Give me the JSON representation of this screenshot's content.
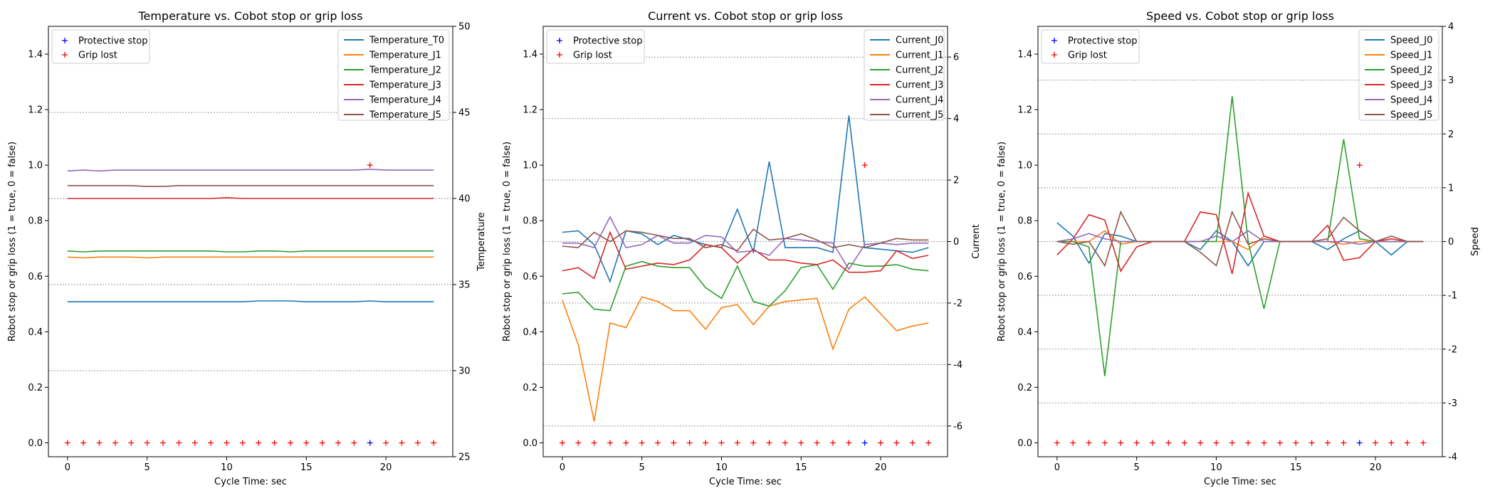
{
  "figure": {
    "accent_colors": {
      "J0": "#1f77b4",
      "J1": "#ff7f0e",
      "J2": "#2ca02c",
      "J3": "#d62728",
      "J4": "#9467bd",
      "J5": "#8c564b",
      "protective_stop": "#0000ff",
      "grip_lost": "#ff0000"
    }
  },
  "chart_data": [
    {
      "type": "line",
      "title": "Temperature vs. Cobot stop or grip loss",
      "xlabel": "Cycle Time: sec",
      "ylabel_left": "Robot stop or grip loss (1 = true, 0 = false)",
      "ylabel_right": "Temperature",
      "xlim": [
        -1.2,
        24.2
      ],
      "ylim_left": [
        -0.05,
        1.5
      ],
      "ylim_right": [
        25,
        50
      ],
      "x_ticks": [
        0,
        5,
        10,
        15,
        20
      ],
      "left_ticks": [
        0.0,
        0.2,
        0.4,
        0.6,
        0.8,
        1.0,
        1.2,
        1.4
      ],
      "right_ticks": [
        25,
        30,
        35,
        40,
        45,
        50
      ],
      "grid": "right-axis horizontal dotted",
      "legend_left": {
        "placement": "top-left",
        "entries": [
          "Protective stop",
          "Grip lost"
        ]
      },
      "legend_right": {
        "placement": "top-right"
      },
      "x": [
        0,
        1,
        2,
        3,
        4,
        5,
        6,
        7,
        8,
        9,
        10,
        11,
        12,
        13,
        14,
        15,
        16,
        17,
        18,
        19,
        20,
        21,
        22,
        23
      ],
      "markers": {
        "protective_stop": [
          0,
          0,
          0,
          0,
          0,
          0,
          0,
          0,
          0,
          0,
          0,
          0,
          0,
          0,
          0,
          0,
          0,
          0,
          0,
          0,
          0,
          0,
          0,
          0
        ],
        "grip_lost": [
          0,
          0,
          0,
          0,
          0,
          0,
          0,
          0,
          0,
          0,
          0,
          0,
          0,
          0,
          0,
          0,
          0,
          0,
          0,
          1,
          0,
          0,
          0,
          0
        ],
        "protective_stop_visible_at": [
          19
        ]
      },
      "series": [
        {
          "name": "Temperature_T0",
          "color": "#1f77b4",
          "values": [
            34.0,
            34.0,
            34.0,
            34.0,
            34.0,
            34.0,
            34.0,
            34.0,
            34.0,
            34.0,
            34.0,
            34.0,
            34.05,
            34.05,
            34.05,
            34.0,
            34.0,
            34.0,
            34.0,
            34.05,
            34.0,
            34.0,
            34.0,
            34.0
          ]
        },
        {
          "name": "Temperature_J1",
          "color": "#ff7f0e",
          "values": [
            36.6,
            36.55,
            36.6,
            36.6,
            36.6,
            36.55,
            36.6,
            36.6,
            36.6,
            36.6,
            36.6,
            36.6,
            36.6,
            36.6,
            36.6,
            36.6,
            36.6,
            36.6,
            36.6,
            36.6,
            36.6,
            36.6,
            36.6,
            36.6
          ]
        },
        {
          "name": "Temperature_J2",
          "color": "#2ca02c",
          "values": [
            36.95,
            36.9,
            36.95,
            36.95,
            36.95,
            36.95,
            36.95,
            36.95,
            36.95,
            36.95,
            36.9,
            36.9,
            36.95,
            36.95,
            36.9,
            36.95,
            36.95,
            36.95,
            36.95,
            36.95,
            36.95,
            36.95,
            36.95,
            36.95
          ]
        },
        {
          "name": "Temperature_J3",
          "color": "#d62728",
          "values": [
            40.0,
            40.0,
            40.0,
            40.0,
            40.0,
            40.0,
            40.0,
            40.0,
            40.0,
            40.0,
            40.05,
            40.0,
            40.0,
            40.0,
            40.0,
            40.0,
            40.0,
            40.0,
            40.0,
            40.0,
            40.0,
            40.0,
            40.0,
            40.0
          ]
        },
        {
          "name": "Temperature_J4",
          "color": "#9467bd",
          "values": [
            41.6,
            41.65,
            41.6,
            41.65,
            41.65,
            41.65,
            41.65,
            41.65,
            41.65,
            41.65,
            41.65,
            41.65,
            41.65,
            41.65,
            41.65,
            41.65,
            41.65,
            41.65,
            41.65,
            41.7,
            41.65,
            41.65,
            41.65,
            41.65
          ]
        },
        {
          "name": "Temperature_J5",
          "color": "#8c564b",
          "values": [
            40.75,
            40.75,
            40.75,
            40.75,
            40.75,
            40.7,
            40.7,
            40.75,
            40.75,
            40.75,
            40.75,
            40.75,
            40.75,
            40.75,
            40.75,
            40.75,
            40.75,
            40.75,
            40.75,
            40.75,
            40.75,
            40.75,
            40.75,
            40.75
          ]
        }
      ]
    },
    {
      "type": "line",
      "title": "Current vs. Cobot stop or grip loss",
      "xlabel": "Cycle Time: sec",
      "ylabel_left": "Robot stop or grip loss (1 = true, 0 = false)",
      "ylabel_right": "Current",
      "xlim": [
        -1.2,
        24.2
      ],
      "ylim_left": [
        -0.05,
        1.5
      ],
      "ylim_right": [
        -7.0,
        7.0
      ],
      "x_ticks": [
        0,
        5,
        10,
        15,
        20
      ],
      "left_ticks": [
        0.0,
        0.2,
        0.4,
        0.6,
        0.8,
        1.0,
        1.2,
        1.4
      ],
      "right_ticks": [
        -6,
        -4,
        -2,
        0,
        2,
        4,
        6
      ],
      "grid": "right-axis horizontal dotted",
      "legend_left": {
        "placement": "top-left",
        "entries": [
          "Protective stop",
          "Grip lost"
        ]
      },
      "legend_right": {
        "placement": "top-right"
      },
      "x": [
        0,
        1,
        2,
        3,
        4,
        5,
        6,
        7,
        8,
        9,
        10,
        11,
        12,
        13,
        14,
        15,
        16,
        17,
        18,
        19,
        20,
        21,
        22,
        23
      ],
      "markers": {
        "protective_stop": [
          0,
          0,
          0,
          0,
          0,
          0,
          0,
          0,
          0,
          0,
          0,
          0,
          0,
          0,
          0,
          0,
          0,
          0,
          0,
          0,
          0,
          0,
          0,
          0
        ],
        "grip_lost": [
          0,
          0,
          0,
          0,
          0,
          0,
          0,
          0,
          0,
          0,
          0,
          0,
          0,
          0,
          0,
          0,
          0,
          0,
          0,
          1,
          0,
          0,
          0,
          0
        ],
        "protective_stop_visible_at": [
          19
        ]
      },
      "series": [
        {
          "name": "Current_J0",
          "color": "#1f77b4",
          "values": [
            0.3,
            0.35,
            -0.1,
            -1.3,
            0.35,
            0.25,
            -0.1,
            0.2,
            0.05,
            -0.1,
            -0.2,
            1.05,
            -0.35,
            2.6,
            -0.2,
            -0.2,
            -0.2,
            -0.35,
            4.1,
            -0.2,
            -0.25,
            -0.3,
            -0.35,
            -0.2
          ]
        },
        {
          "name": "Current_J1",
          "color": "#ff7f0e",
          "values": [
            -1.9,
            -3.35,
            -5.85,
            -2.65,
            -2.8,
            -1.8,
            -1.95,
            -2.25,
            -2.25,
            -2.85,
            -2.15,
            -2.05,
            -2.7,
            -2.1,
            -1.95,
            -1.9,
            -1.85,
            -3.5,
            -2.2,
            -1.8,
            -2.35,
            -2.9,
            -2.75,
            -2.65
          ]
        },
        {
          "name": "Current_J2",
          "color": "#2ca02c",
          "values": [
            -1.7,
            -1.65,
            -2.2,
            -2.25,
            -0.8,
            -0.65,
            -0.8,
            -0.85,
            -0.85,
            -1.5,
            -1.85,
            -0.8,
            -1.95,
            -2.1,
            -1.6,
            -0.85,
            -0.75,
            -1.55,
            -0.7,
            -0.8,
            -0.8,
            -0.75,
            -0.9,
            -0.95
          ]
        },
        {
          "name": "Current_J3",
          "color": "#d62728",
          "values": [
            -0.95,
            -0.85,
            -1.2,
            0.3,
            -0.9,
            -0.8,
            -0.7,
            -0.75,
            -0.6,
            -0.1,
            -0.2,
            -0.7,
            -0.25,
            -0.6,
            -0.6,
            -0.7,
            -0.75,
            -0.6,
            -1.0,
            -1.0,
            -0.95,
            -0.3,
            -0.55,
            -0.45
          ]
        },
        {
          "name": "Current_J4",
          "color": "#9467bd",
          "values": [
            -0.05,
            -0.05,
            -0.2,
            0.8,
            -0.2,
            -0.1,
            0.2,
            -0.05,
            -0.05,
            0.2,
            0.15,
            -0.35,
            -0.3,
            -0.45,
            0.1,
            0.05,
            0.0,
            -0.05,
            -0.9,
            -0.1,
            -0.05,
            -0.1,
            -0.05,
            -0.05
          ]
        },
        {
          "name": "Current_J5",
          "color": "#8c564b",
          "values": [
            -0.15,
            -0.2,
            0.3,
            0.0,
            0.35,
            0.3,
            0.2,
            0.1,
            0.1,
            -0.2,
            -0.1,
            -0.3,
            0.4,
            0.05,
            0.1,
            0.25,
            0.05,
            -0.2,
            -0.1,
            -0.2,
            -0.05,
            0.1,
            0.05,
            0.05
          ]
        }
      ]
    },
    {
      "type": "line",
      "title": "Speed vs. Cobot stop or grip loss",
      "xlabel": "Cycle Time: sec",
      "ylabel_left": "Robot stop or grip loss (1 = true, 0 = false)",
      "ylabel_right": "Speed",
      "xlim": [
        -1.2,
        24.2
      ],
      "ylim_left": [
        -0.05,
        1.5
      ],
      "ylim_right": [
        -4,
        4
      ],
      "x_ticks": [
        0,
        5,
        10,
        15,
        20
      ],
      "left_ticks": [
        0.0,
        0.2,
        0.4,
        0.6,
        0.8,
        1.0,
        1.2,
        1.4
      ],
      "right_ticks": [
        -4,
        -3,
        -2,
        -1,
        0,
        1,
        2,
        3,
        4
      ],
      "grid": "right-axis horizontal dotted",
      "legend_left": {
        "placement": "top-left",
        "entries": [
          "Protective stop",
          "Grip lost"
        ]
      },
      "legend_right": {
        "placement": "top-right"
      },
      "x": [
        0,
        1,
        2,
        3,
        4,
        5,
        6,
        7,
        8,
        9,
        10,
        11,
        12,
        13,
        14,
        15,
        16,
        17,
        18,
        19,
        20,
        21,
        22,
        23
      ],
      "markers": {
        "protective_stop": [
          0,
          0,
          0,
          0,
          0,
          0,
          0,
          0,
          0,
          0,
          0,
          0,
          0,
          0,
          0,
          0,
          0,
          0,
          0,
          0,
          0,
          0,
          0,
          0
        ],
        "grip_lost": [
          0,
          0,
          0,
          0,
          0,
          0,
          0,
          0,
          0,
          0,
          0,
          0,
          0,
          0,
          0,
          0,
          0,
          0,
          0,
          1,
          0,
          0,
          0,
          0
        ],
        "protective_stop_visible_at": [
          19
        ]
      },
      "series": [
        {
          "name": "Speed_J0",
          "color": "#1f77b4",
          "values": [
            0.35,
            0.1,
            -0.4,
            0.15,
            0.1,
            0.0,
            0.0,
            0.0,
            0.0,
            -0.15,
            0.2,
            0.0,
            -0.45,
            0.0,
            0.0,
            0.0,
            0.0,
            -0.15,
            0.05,
            0.2,
            0.0,
            -0.25,
            0.0,
            0.0
          ]
        },
        {
          "name": "Speed_J1",
          "color": "#ff7f0e",
          "values": [
            0.0,
            0.0,
            0.0,
            0.2,
            -0.05,
            0.0,
            0.0,
            0.0,
            0.0,
            0.0,
            0.0,
            0.0,
            -0.15,
            0.1,
            0.0,
            0.0,
            0.0,
            0.0,
            -0.05,
            0.0,
            0.0,
            0.0,
            0.0,
            0.0
          ]
        },
        {
          "name": "Speed_J2",
          "color": "#2ca02c",
          "values": [
            0.0,
            0.0,
            -0.1,
            -2.5,
            0.0,
            0.0,
            0.0,
            0.0,
            0.0,
            0.0,
            0.0,
            2.7,
            0.0,
            -1.25,
            0.0,
            0.0,
            0.0,
            0.0,
            1.9,
            0.05,
            0.0,
            0.0,
            0.0,
            0.0
          ]
        },
        {
          "name": "Speed_J3",
          "color": "#d62728",
          "values": [
            -0.25,
            0.05,
            0.5,
            0.4,
            -0.55,
            -0.1,
            0.0,
            0.0,
            0.0,
            0.55,
            0.5,
            -0.6,
            0.9,
            0.1,
            0.0,
            0.0,
            0.0,
            0.3,
            -0.35,
            -0.3,
            0.0,
            0.05,
            0.0,
            0.0
          ]
        },
        {
          "name": "Speed_J4",
          "color": "#9467bd",
          "values": [
            0.0,
            0.05,
            0.15,
            0.05,
            0.0,
            0.0,
            0.0,
            0.0,
            0.0,
            0.0,
            0.1,
            0.0,
            0.2,
            0.0,
            0.0,
            0.0,
            0.0,
            0.0,
            0.0,
            -0.05,
            0.0,
            0.0,
            0.0,
            0.0
          ]
        },
        {
          "name": "Speed_J5",
          "color": "#8c564b",
          "values": [
            0.0,
            -0.05,
            0.0,
            -0.45,
            0.55,
            0.0,
            0.0,
            0.0,
            0.0,
            -0.2,
            -0.45,
            0.55,
            -0.05,
            0.05,
            0.0,
            0.0,
            0.0,
            0.05,
            0.45,
            0.2,
            0.0,
            0.1,
            0.0,
            0.0
          ]
        }
      ]
    }
  ]
}
